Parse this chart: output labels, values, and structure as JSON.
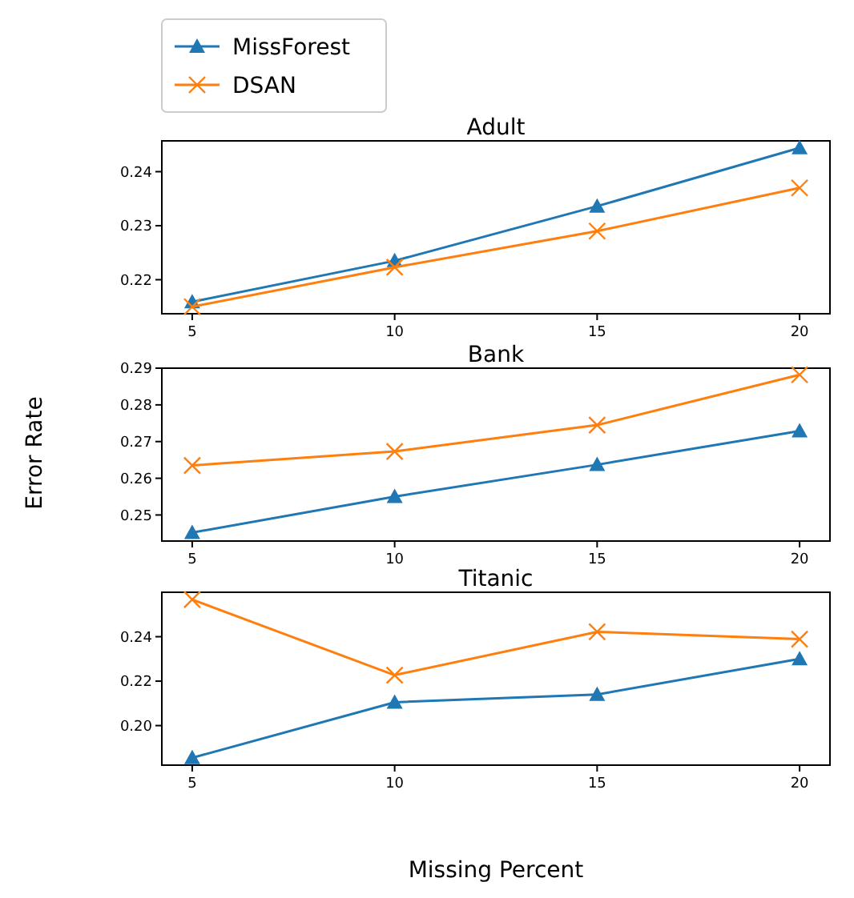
{
  "chart_data": [
    {
      "type": "line",
      "title": "Adult",
      "x": [
        5,
        10,
        15,
        20
      ],
      "xlim": [
        4.25,
        20.75
      ],
      "xticks": [
        5,
        10,
        15,
        20
      ],
      "ylim": [
        0.2137,
        0.2457
      ],
      "yticks": [
        0.22,
        0.23,
        0.24
      ],
      "legend": "top left",
      "grid": false,
      "line_style": "solid",
      "series": [
        {
          "name": "MissForest",
          "color": "#1f77b4",
          "marker": "triangle",
          "values": [
            0.2159,
            0.2235,
            0.2336,
            0.2444
          ]
        },
        {
          "name": "DSAN",
          "color": "#ff7f0e",
          "marker": "cross",
          "values": [
            0.215,
            0.2223,
            0.229,
            0.237
          ]
        }
      ]
    },
    {
      "type": "line",
      "title": "Bank",
      "ylabel": "Error Rate",
      "x": [
        5,
        10,
        15,
        20
      ],
      "xlim": [
        4.25,
        20.75
      ],
      "xticks": [
        5,
        10,
        15,
        20
      ],
      "ylim": [
        0.2429,
        0.29
      ],
      "yticks": [
        0.25,
        0.26,
        0.27,
        0.28,
        0.29
      ],
      "grid": false,
      "line_style": "solid",
      "series": [
        {
          "color": "#1f77b4",
          "marker": "triangle",
          "values": [
            0.2452,
            0.255,
            0.2637,
            0.2729
          ]
        },
        {
          "color": "#ff7f0e",
          "marker": "cross",
          "values": [
            0.2635,
            0.2673,
            0.2745,
            0.2882
          ]
        }
      ]
    },
    {
      "type": "line",
      "title": "Titanic",
      "xlabel": "Missing Percent",
      "x": [
        5,
        10,
        15,
        20
      ],
      "xlim": [
        4.25,
        20.75
      ],
      "xticks": [
        5,
        10,
        15,
        20
      ],
      "ylim": [
        0.1822,
        0.26
      ],
      "yticks": [
        {
          "value": 0.2,
          "label": "0.20"
        },
        0.22,
        0.24
      ],
      "grid": false,
      "line_style": "solid",
      "series": [
        {
          "color": "#1f77b4",
          "marker": "triangle",
          "values": [
            0.1855,
            0.2105,
            0.214,
            0.23
          ]
        },
        {
          "color": "#ff7f0e",
          "marker": "cross",
          "values": [
            0.2567,
            0.2227,
            0.2422,
            0.2389
          ]
        }
      ]
    }
  ]
}
